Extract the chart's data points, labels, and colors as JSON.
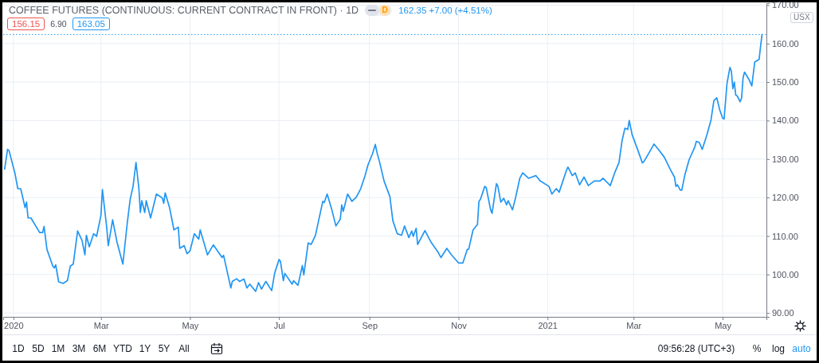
{
  "chart_data": {
    "type": "line",
    "title": "COFFEE FUTURES (CONTINUOUS: CURRENT CONTRACT IN FRONT) · 1D",
    "x": [
      "2019-12-26",
      "2019-12-28",
      "2019-12-29",
      "2020-01-02",
      "2020-01-04",
      "2020-01-06",
      "2020-01-09",
      "2020-01-10",
      "2020-01-11",
      "2020-01-13",
      "2020-01-19",
      "2020-01-21",
      "2020-01-22",
      "2020-01-24",
      "2020-01-28",
      "2020-01-29",
      "2020-01-30",
      "2020-02-01",
      "2020-02-04",
      "2020-02-07",
      "2020-02-09",
      "2020-02-11",
      "2020-02-14",
      "2020-02-17",
      "2020-02-19",
      "2020-02-20",
      "2020-02-22",
      "2020-02-25",
      "2020-02-27",
      "2020-03-01",
      "2020-03-02",
      "2020-03-05",
      "2020-03-06",
      "2020-03-09",
      "2020-03-12",
      "2020-03-16",
      "2020-03-19",
      "2020-03-21",
      "2020-03-23",
      "2020-03-25",
      "2020-03-27",
      "2020-03-28",
      "2020-03-29",
      "2020-03-31",
      "2020-04-01",
      "2020-04-04",
      "2020-04-08",
      "2020-04-12",
      "2020-04-13",
      "2020-04-14",
      "2020-04-17",
      "2020-04-20",
      "2020-04-23",
      "2020-04-24",
      "2020-04-27",
      "2020-04-29",
      "2020-05-01",
      "2020-05-04",
      "2020-05-07",
      "2020-05-08",
      "2020-05-13",
      "2020-05-17",
      "2020-05-23",
      "2020-05-24",
      "2020-05-29",
      "2020-05-30",
      "2020-06-02",
      "2020-06-04",
      "2020-06-07",
      "2020-06-09",
      "2020-06-11",
      "2020-06-15",
      "2020-06-17",
      "2020-06-19",
      "2020-06-22",
      "2020-06-26",
      "2020-06-28",
      "2020-07-01",
      "2020-07-02",
      "2020-07-04",
      "2020-07-05",
      "2020-07-10",
      "2020-07-11",
      "2020-07-14",
      "2020-07-17",
      "2020-07-18",
      "2020-07-21",
      "2020-07-23",
      "2020-07-26",
      "2020-07-27",
      "2020-07-31",
      "2020-08-01",
      "2020-08-03",
      "2020-08-06",
      "2020-08-09",
      "2020-08-12",
      "2020-08-13",
      "2020-08-14",
      "2020-08-17",
      "2020-08-20",
      "2020-08-23",
      "2020-08-26",
      "2020-08-29",
      "2020-08-31",
      "2020-09-03",
      "2020-09-05",
      "2020-09-06",
      "2020-09-08",
      "2020-09-11",
      "2020-09-15",
      "2020-09-17",
      "2020-09-20",
      "2020-09-23",
      "2020-09-25",
      "2020-09-28",
      "2020-09-30",
      "2020-10-01",
      "2020-10-03",
      "2020-10-04",
      "2020-10-09",
      "2020-10-13",
      "2020-10-18",
      "2020-10-20",
      "2020-10-24",
      "2020-10-27",
      "2020-11-01",
      "2020-11-04",
      "2020-11-07",
      "2020-11-08",
      "2020-11-11",
      "2020-11-14",
      "2020-11-15",
      "2020-11-16",
      "2020-11-19",
      "2020-11-20",
      "2020-11-23",
      "2020-11-24",
      "2020-11-27",
      "2020-11-28",
      "2020-11-30",
      "2020-12-02",
      "2020-12-04",
      "2020-12-05",
      "2020-12-08",
      "2020-12-10",
      "2020-12-13",
      "2020-12-15",
      "2020-12-19",
      "2020-12-24",
      "2020-12-27",
      "2021-01-02",
      "2021-01-04",
      "2021-01-07",
      "2021-01-09",
      "2021-01-14",
      "2021-01-15",
      "2021-01-18",
      "2021-01-20",
      "2021-01-23",
      "2021-01-26",
      "2021-01-29",
      "2021-02-02",
      "2021-02-06",
      "2021-02-08",
      "2021-02-13",
      "2021-02-16",
      "2021-02-19",
      "2021-02-21",
      "2021-02-23",
      "2021-02-25",
      "2021-02-26",
      "2021-02-28",
      "2021-03-04",
      "2021-03-07",
      "2021-03-08",
      "2021-03-12",
      "2021-03-15",
      "2021-03-18",
      "2021-03-22",
      "2021-03-26",
      "2021-03-29",
      "2021-03-30",
      "2021-03-31",
      "2021-04-02",
      "2021-04-03",
      "2021-04-05",
      "2021-04-08",
      "2021-04-12",
      "2021-04-13",
      "2021-04-15",
      "2021-04-17",
      "2021-04-20",
      "2021-04-23",
      "2021-04-25",
      "2021-04-27",
      "2021-04-29",
      "2021-05-01",
      "2021-05-02",
      "2021-05-04",
      "2021-05-06",
      "2021-05-07",
      "2021-05-08",
      "2021-05-09",
      "2021-05-10",
      "2021-05-11",
      "2021-05-13",
      "2021-05-14",
      "2021-05-15",
      "2021-05-16",
      "2021-05-19",
      "2021-05-21",
      "2021-05-23",
      "2021-05-26",
      "2021-05-27",
      "2021-05-28"
    ],
    "values": [
      127.4,
      132.5,
      132.2,
      126.4,
      122.3,
      122.3,
      117.4,
      118.8,
      114.7,
      114.7,
      110.9,
      110.9,
      112.5,
      106.5,
      102.2,
      101.7,
      102.5,
      98.1,
      97.7,
      98.4,
      102.2,
      102.7,
      111.3,
      108.9,
      105.1,
      110.2,
      107.2,
      110.6,
      109.9,
      115.4,
      122.1,
      112.0,
      107.5,
      114.2,
      108.4,
      102.7,
      113.3,
      119.5,
      122.9,
      129.1,
      122.3,
      116.1,
      119.2,
      116.1,
      119.2,
      114.7,
      120.9,
      119.9,
      118.5,
      121.2,
      117.4,
      111.6,
      112.3,
      106.8,
      107.5,
      105.4,
      106.1,
      110.6,
      109.2,
      111.6,
      105.1,
      107.7,
      104.4,
      105.0,
      96.5,
      98.2,
      98.9,
      98.2,
      98.8,
      96.5,
      97.5,
      95.6,
      97.9,
      96.2,
      98.2,
      95.8,
      100.3,
      103.9,
      103.4,
      98.4,
      100.3,
      97.5,
      98.4,
      97.2,
      102.3,
      99.9,
      108.2,
      107.8,
      110.2,
      112.0,
      119.0,
      118.7,
      120.9,
      117.1,
      112.6,
      114.4,
      118.1,
      116.4,
      120.9,
      119.0,
      120.1,
      122.3,
      125.7,
      128.5,
      131.3,
      133.8,
      131.9,
      129.1,
      124.3,
      120.2,
      114.0,
      110.6,
      110.2,
      112.6,
      109.6,
      111.3,
      109.9,
      112.0,
      107.8,
      111.4,
      108.5,
      105.8,
      104.4,
      106.8,
      105.2,
      103.0,
      103.0,
      106.5,
      106.6,
      111.6,
      113.0,
      119.0,
      119.5,
      122.9,
      122.6,
      116.8,
      115.9,
      123.6,
      122.9,
      118.8,
      119.8,
      118.1,
      119.2,
      116.8,
      119.8,
      125.0,
      126.4,
      125.0,
      125.7,
      124.3,
      122.9,
      120.9,
      122.3,
      121.4,
      127.1,
      127.9,
      125.7,
      126.4,
      123.3,
      125.3,
      123.1,
      124.3,
      124.3,
      125.0,
      123.1,
      126.4,
      129.1,
      134.6,
      138.0,
      137.7,
      140.0,
      136.3,
      132.2,
      129.0,
      129.3,
      131.9,
      133.9,
      132.5,
      130.5,
      127.4,
      125.3,
      122.9,
      123.3,
      121.9,
      121.9,
      125.7,
      129.8,
      133.2,
      134.6,
      134.3,
      132.5,
      136.0,
      140.1,
      145.2,
      145.9,
      142.8,
      140.6,
      140.4,
      149.7,
      153.8,
      152.8,
      148.3,
      150.0,
      146.6,
      146.4,
      144.9,
      145.9,
      151.1,
      152.6,
      150.7,
      149.0,
      155.2,
      155.9,
      159.3,
      162.35
    ],
    "color": "#2196f3",
    "xlim": [
      "2019-12-25",
      "2021-05-31"
    ],
    "xticks": [
      {
        "value": "2020-01-01",
        "label": "2020"
      },
      {
        "value": "2020-03-01",
        "label": "Mar"
      },
      {
        "value": "2020-05-01",
        "label": "May"
      },
      {
        "value": "2020-07-01",
        "label": "Jul"
      },
      {
        "value": "2020-09-01",
        "label": "Sep"
      },
      {
        "value": "2020-11-01",
        "label": "Nov"
      },
      {
        "value": "2021-01-01",
        "label": "2021"
      },
      {
        "value": "2021-03-01",
        "label": "Mar"
      },
      {
        "value": "2021-05-01",
        "label": "May"
      }
    ],
    "ylim": [
      89,
      170.5
    ],
    "yticks": [
      {
        "value": 90,
        "label": "90.00"
      },
      {
        "value": 100,
        "label": "100.00"
      },
      {
        "value": 110,
        "label": "110.00"
      },
      {
        "value": 120,
        "label": "120.00"
      },
      {
        "value": 130,
        "label": "130.00"
      },
      {
        "value": 140,
        "label": "140.00"
      },
      {
        "value": 150,
        "label": "150.00"
      },
      {
        "value": 160,
        "label": "160.00"
      },
      {
        "value": 170,
        "label": "170.00"
      }
    ],
    "grid": true,
    "ref_lines": [
      {
        "axis": "y",
        "value": 162.35,
        "color": "#2196f3",
        "line_style": "dotted"
      }
    ],
    "annotations": [
      "162.35 +7.00 (+4.51%)",
      "D",
      "156.15",
      "6.90",
      "163.05",
      "USX",
      "1D",
      "5D",
      "1M",
      "3M",
      "6M",
      "YTD",
      "1Y",
      "5Y",
      "All",
      "09:56:28 (UTC+3)",
      "%",
      "log",
      "auto"
    ]
  }
}
